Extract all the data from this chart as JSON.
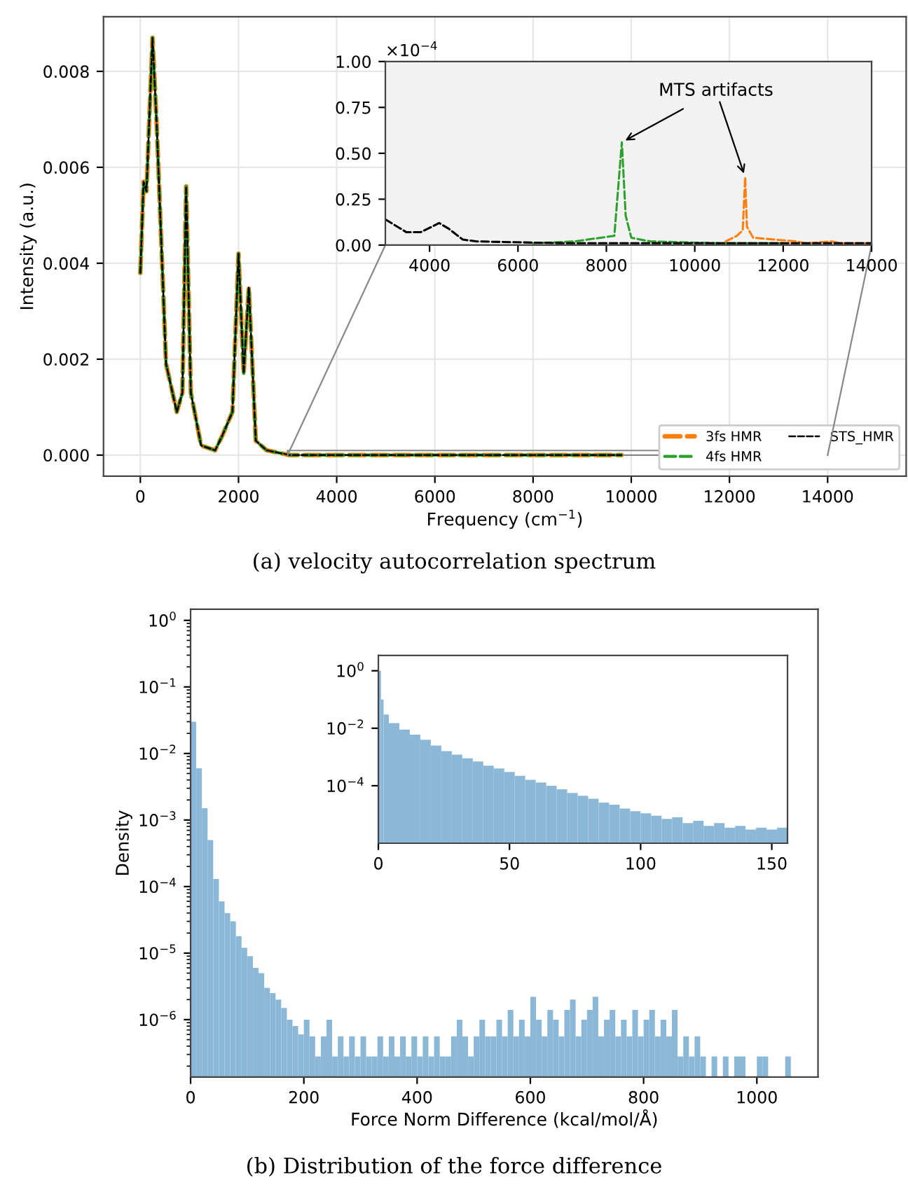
{
  "chart_data": [
    {
      "type": "line",
      "title": "(a) velocity autocorrelation spectrum",
      "xlabel": "Frequency (cm$^{−1}$)",
      "ylabel": "Intensity (a.u.)",
      "xlim": [
        -750,
        15600
      ],
      "ylim": [
        -0.00044,
        0.00914
      ],
      "xticks": [
        0,
        2000,
        4000,
        6000,
        8000,
        10000,
        12000,
        14000
      ],
      "yticks": [
        {
          "value": 0,
          "label": "0.000"
        },
        {
          "value": 0.002,
          "label": "0.002"
        },
        {
          "value": 0.004,
          "label": "0.004"
        },
        {
          "value": 0.006,
          "label": "0.006"
        },
        {
          "value": 0.008,
          "label": "0.008"
        }
      ],
      "grid": true,
      "legend": "bottom right",
      "line_style": "dashed",
      "series": [
        {
          "name": "3fs HMR",
          "color": "#ff7f0e",
          "x": [
            0,
            67,
            125,
            248,
            333,
            524,
            743,
            857,
            933,
            1029,
            1238,
            1524,
            1667,
            1876,
            2000,
            2105,
            2210,
            2352,
            2571,
            3048,
            5000,
            8000,
            9800
          ],
          "values": [
            0.0038,
            0.0057,
            0.0055,
            0.0087,
            0.0069,
            0.0019,
            0.0009,
            0.0013,
            0.0056,
            0.0013,
            0.0002,
            0.0001,
            0.0004,
            0.0009,
            0.0042,
            0.0017,
            0.0035,
            0.0003,
            0.0001,
            0,
            0,
            0,
            0
          ]
        },
        {
          "name": "4fs HMR",
          "color": "#2ca02c",
          "x": [
            0,
            67,
            125,
            248,
            333,
            524,
            743,
            857,
            933,
            1029,
            1238,
            1524,
            1667,
            1876,
            2000,
            2105,
            2210,
            2352,
            2571,
            3048,
            5000,
            8000,
            9800
          ],
          "values": [
            0.0038,
            0.0057,
            0.0055,
            0.0087,
            0.0069,
            0.0019,
            0.0009,
            0.0013,
            0.0056,
            0.0013,
            0.0002,
            0.0001,
            0.0004,
            0.0009,
            0.0042,
            0.0017,
            0.0035,
            0.0003,
            0.0001,
            0,
            0,
            0,
            0
          ]
        },
        {
          "name": "STS_HMR",
          "color": "#000000",
          "x": [
            0,
            67,
            125,
            248,
            333,
            524,
            743,
            857,
            933,
            1029,
            1238,
            1524,
            1667,
            1876,
            2000,
            2105,
            2210,
            2352,
            2571,
            3048,
            5000,
            8000,
            9800
          ],
          "values": [
            0.0038,
            0.0057,
            0.0055,
            0.0087,
            0.0069,
            0.0019,
            0.0009,
            0.0013,
            0.0056,
            0.0013,
            0.0002,
            0.0001,
            0.0004,
            0.0009,
            0.0042,
            0.0017,
            0.0035,
            0.0003,
            0.0001,
            0,
            0,
            0,
            0
          ]
        }
      ]
    },
    {
      "type": "line",
      "xlim": [
        3000,
        14000
      ],
      "ylim": [
        0,
        1
      ],
      "xticks": [
        4000,
        6000,
        8000,
        10000,
        12000,
        14000
      ],
      "yticks": [
        {
          "value": 0,
          "label": "0.00"
        },
        {
          "value": 0.25,
          "label": "0.25"
        },
        {
          "value": 0.5,
          "label": "0.50"
        },
        {
          "value": 0.75,
          "label": "0.75"
        },
        {
          "value": 1,
          "label": "1.00"
        }
      ],
      "line_style": "dashed",
      "annotations": [
        "×10$^{−4}$",
        {
          "text": "MTS artifacts",
          "x": 8350,
          "y": 0.56
        }
      ],
      "series": [
        {
          "color": "#ff7f0e",
          "x": [
            10700,
            10950,
            11085,
            11140,
            11180,
            11320,
            12300,
            12500,
            13100,
            13300,
            14000
          ],
          "values": [
            0.02,
            0.05,
            0.08,
            0.37,
            0.1,
            0.04,
            0.02,
            0.01,
            0.02,
            0.01,
            0.01
          ]
        },
        {
          "color": "#2ca02c",
          "x": [
            6340,
            7290,
            7865,
            8180,
            8350,
            8437,
            8565,
            9000,
            10600,
            12000
          ],
          "values": [
            0.01,
            0.02,
            0.04,
            0.05,
            0.56,
            0.16,
            0.04,
            0.02,
            0.01,
            0.01
          ]
        },
        {
          "color": "#000000",
          "x": [
            3000,
            3477,
            3795,
            4218,
            4430,
            4750,
            5066,
            7000,
            10000,
            14000
          ],
          "values": [
            0.14,
            0.07,
            0.07,
            0.12,
            0.09,
            0.03,
            0.02,
            0.01,
            0.01,
            0.01
          ]
        }
      ]
    },
    {
      "type": "histogram",
      "title": "(b) Distribution of the force difference",
      "xlabel": "Force Norm Difference (kcal/mol/Å)",
      "ylabel": "Density",
      "log": true,
      "color": "#8cb8d8",
      "xlim": [
        0,
        1108
      ],
      "ylim": [
        1.37e-07,
        1.47
      ],
      "xticks": [
        0,
        200,
        400,
        600,
        800,
        1000
      ],
      "yticks": [
        {
          "value": 1e-06,
          "label": "10$^{−6}$"
        },
        {
          "value": 1e-05,
          "label": "10$^{−5}$"
        },
        {
          "value": 0.0001,
          "label": "10$^{−4}$"
        },
        {
          "value": 0.001,
          "label": "10$^{−3}$"
        },
        {
          "value": 0.01,
          "label": "10$^{−2}$"
        },
        {
          "value": 0.1,
          "label": "10$^{−1}$"
        },
        {
          "value": 1,
          "label": "10$^{0}$"
        }
      ],
      "bins": [
        0,
        10,
        20,
        30,
        40,
        50,
        60,
        70,
        80,
        90,
        100,
        110,
        120,
        130,
        140,
        150,
        160,
        170,
        180,
        190,
        200,
        210,
        220,
        230,
        240,
        250,
        260,
        270,
        280,
        290,
        300,
        310,
        320,
        330,
        340,
        350,
        360,
        370,
        380,
        390,
        400,
        410,
        420,
        430,
        440,
        450,
        460,
        470,
        480,
        490,
        500,
        510,
        520,
        530,
        540,
        550,
        560,
        570,
        580,
        590,
        600,
        610,
        620,
        630,
        640,
        650,
        660,
        670,
        680,
        690,
        700,
        710,
        720,
        730,
        740,
        750,
        760,
        770,
        780,
        790,
        800,
        810,
        820,
        830,
        840,
        850,
        860,
        870,
        880,
        890,
        900,
        910,
        920,
        930,
        940,
        950,
        960,
        970,
        980,
        990,
        1000,
        1010,
        1020,
        1030,
        1040,
        1050,
        1060
      ],
      "values": [
        0.03,
        0.006,
        0.0015,
        0.0005,
        0.00013,
        6e-05,
        4e-05,
        3e-05,
        1.8e-05,
        1.2e-05,
        9e-06,
        6e-06,
        5e-06,
        3e-06,
        2.5e-06,
        2e-06,
        1.5e-06,
        1e-06,
        8e-07,
        6e-07,
        1e-06,
        5.6e-07,
        2.8e-07,
        5.6e-07,
        1e-06,
        2.8e-07,
        5.6e-07,
        2.8e-07,
        5.6e-07,
        2.8e-07,
        5.6e-07,
        2.8e-07,
        2.8e-07,
        5.6e-07,
        2.8e-07,
        5.6e-07,
        2.8e-07,
        5.6e-07,
        2.8e-07,
        5.6e-07,
        2.8e-07,
        5.6e-07,
        2.8e-07,
        5.6e-07,
        2.8e-07,
        2.8e-07,
        5.6e-07,
        1e-06,
        5.6e-07,
        2.8e-07,
        5.6e-07,
        1e-06,
        5.6e-07,
        5.6e-07,
        1e-06,
        5.6e-07,
        1.4e-06,
        5.6e-07,
        1e-06,
        5.6e-07,
        2.2e-06,
        1e-06,
        5.6e-07,
        1.4e-06,
        1e-06,
        5.6e-07,
        1.4e-06,
        2e-06,
        5.6e-07,
        1e-06,
        1.4e-06,
        2.2e-06,
        5.6e-07,
        1e-06,
        1.4e-06,
        5.6e-07,
        1e-06,
        5.6e-07,
        1.4e-06,
        5.6e-07,
        1e-06,
        1.4e-06,
        5.6e-07,
        1e-06,
        5.6e-07,
        1.4e-06,
        2.8e-07,
        5.6e-07,
        2.8e-07,
        5.6e-07,
        2.8e-07,
        null,
        2.8e-07,
        null,
        2.8e-07,
        null,
        2.8e-07,
        2.8e-07,
        null,
        null,
        2.8e-07,
        2.8e-07,
        null,
        null,
        null,
        2.8e-07
      ]
    },
    {
      "type": "histogram",
      "log": true,
      "color": "#8cb8d8",
      "xlim": [
        0,
        156
      ],
      "ylim": [
        1e-06,
        3.4
      ],
      "xticks": [
        0,
        50,
        100,
        150
      ],
      "yticks": [
        {
          "value": 0.0001,
          "label": "10$^{−4}$"
        },
        {
          "value": 0.01,
          "label": "10$^{−2}$"
        },
        {
          "value": 1,
          "label": "10$^{0}$"
        }
      ],
      "bins": [
        0,
        1,
        2,
        4,
        8,
        12,
        16,
        20,
        24,
        28,
        32,
        36,
        40,
        44,
        48,
        52,
        56,
        60,
        64,
        68,
        72,
        76,
        80,
        84,
        88,
        92,
        96,
        100,
        104,
        108,
        112,
        116,
        120,
        124,
        128,
        132,
        136,
        140,
        144,
        148,
        152,
        156
      ],
      "values": [
        1,
        0.1,
        0.03,
        0.015,
        0.009,
        0.006,
        0.004,
        0.0025,
        0.0016,
        0.0012,
        0.0009,
        0.0007,
        0.0005,
        0.0004,
        0.0003,
        0.00022,
        0.00016,
        0.00013,
        0.0001,
        7.5e-05,
        5.6e-05,
        4.5e-05,
        3.5e-05,
        2.6e-05,
        2.2e-05,
        1.6e-05,
        1.3e-05,
        1.1e-05,
        9e-06,
        7e-06,
        8e-06,
        5e-06,
        6e-06,
        4e-06,
        5e-06,
        3.5e-06,
        4e-06,
        3e-06,
        3.5e-06,
        3e-06,
        3.5e-06
      ]
    }
  ]
}
